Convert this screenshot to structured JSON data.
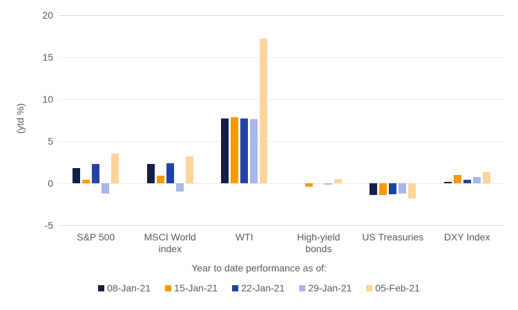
{
  "chart_data": {
    "type": "bar",
    "title": "",
    "xlabel": "Year to date performance as of:",
    "ylabel": "(ytd %)",
    "ylim": [
      -5,
      20
    ],
    "yticks": [
      20,
      15,
      10,
      5,
      0,
      -5
    ],
    "grid": true,
    "legend_position": "bottom",
    "categories": [
      "S&P 500",
      "MSCI World index",
      "WTI",
      "High-yield bonds",
      "US Treasuries",
      "DXY Index"
    ],
    "category_labels": [
      "S&P 500",
      "MSCI World\nindex",
      "WTI",
      "High-yield\nbonds",
      "US Treasuries",
      "DXY Index"
    ],
    "series": [
      {
        "name": "08-Jan-21",
        "color": "#131F45",
        "values": [
          1.8,
          2.3,
          7.7,
          0.0,
          -1.4,
          0.2
        ]
      },
      {
        "name": "15-Jan-21",
        "color": "#FF9900",
        "values": [
          0.4,
          0.9,
          7.9,
          -0.4,
          -1.4,
          1.0
        ]
      },
      {
        "name": "22-Jan-21",
        "color": "#2243A5",
        "values": [
          2.3,
          2.4,
          7.7,
          0.0,
          -1.3,
          0.4
        ]
      },
      {
        "name": "29-Jan-21",
        "color": "#A6B7E8",
        "values": [
          -1.2,
          -1.0,
          7.6,
          -0.2,
          -1.2,
          0.7
        ]
      },
      {
        "name": "05-Feb-21",
        "color": "#FDD59B",
        "values": [
          3.5,
          3.2,
          17.2,
          0.5,
          -1.8,
          1.3
        ]
      }
    ]
  },
  "colors": {
    "grid": "#D9D9D9",
    "text": "#595959",
    "background": "#FFFFFF"
  }
}
